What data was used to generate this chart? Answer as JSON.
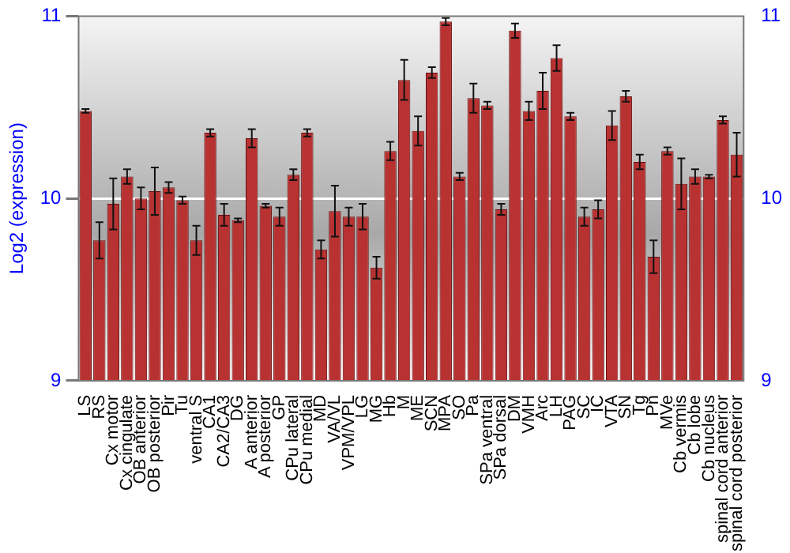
{
  "chart_data": {
    "type": "bar",
    "ylabel": "Log2 (expression)",
    "categories": [
      "LS",
      "RS",
      "Cx motor",
      "Cx cingulate",
      "OB anterior",
      "OB posterior",
      "Pir",
      "Tu",
      "ventral S",
      "CA1",
      "CA2/CA3",
      "DG",
      "A anterior",
      "A posterior",
      "GP",
      "CPu lateral",
      "CPu medial",
      "MD",
      "VA/VL",
      "VPM/VPL",
      "LG",
      "MG",
      "Hb",
      "M",
      "ME",
      "SCN",
      "MPA",
      "SO",
      "Pa",
      "SPa ventral",
      "SPa dorsal",
      "DM",
      "VMH",
      "Arc",
      "LH",
      "PAG",
      "SC",
      "IC",
      "VTA",
      "SN",
      "Tg",
      "Pn",
      "MVe",
      "Cb vermis",
      "Cb lobe",
      "Cb nucleus",
      "spinal cord anterior",
      "spinal cord posterior"
    ],
    "values": [
      10.48,
      9.77,
      9.97,
      10.12,
      10.0,
      10.04,
      10.06,
      9.99,
      9.77,
      10.36,
      9.91,
      9.88,
      10.33,
      9.96,
      9.9,
      10.13,
      10.36,
      9.72,
      9.93,
      9.9,
      9.9,
      9.62,
      10.26,
      10.65,
      10.37,
      10.69,
      10.97,
      10.12,
      10.55,
      10.51,
      9.94,
      10.92,
      10.48,
      10.59,
      10.77,
      10.45,
      9.9,
      9.94,
      10.4,
      10.56,
      10.2,
      9.68,
      10.26,
      10.08,
      10.12,
      10.12,
      10.43,
      10.24
    ],
    "errors": [
      0.01,
      0.1,
      0.14,
      0.04,
      0.06,
      0.13,
      0.03,
      0.02,
      0.08,
      0.02,
      0.06,
      0.01,
      0.05,
      0.01,
      0.05,
      0.03,
      0.02,
      0.05,
      0.14,
      0.05,
      0.07,
      0.06,
      0.05,
      0.11,
      0.08,
      0.03,
      0.02,
      0.02,
      0.08,
      0.02,
      0.03,
      0.04,
      0.05,
      0.1,
      0.07,
      0.02,
      0.05,
      0.05,
      0.08,
      0.03,
      0.04,
      0.09,
      0.02,
      0.14,
      0.04,
      0.01,
      0.02,
      0.12
    ],
    "color": "#b83232",
    "ylim": [
      9,
      11
    ],
    "yticks": [
      9,
      10,
      11
    ],
    "y2lim": [
      9,
      11
    ],
    "y2ticks": [
      9,
      10,
      11
    ],
    "grid": "y",
    "legend": false
  }
}
